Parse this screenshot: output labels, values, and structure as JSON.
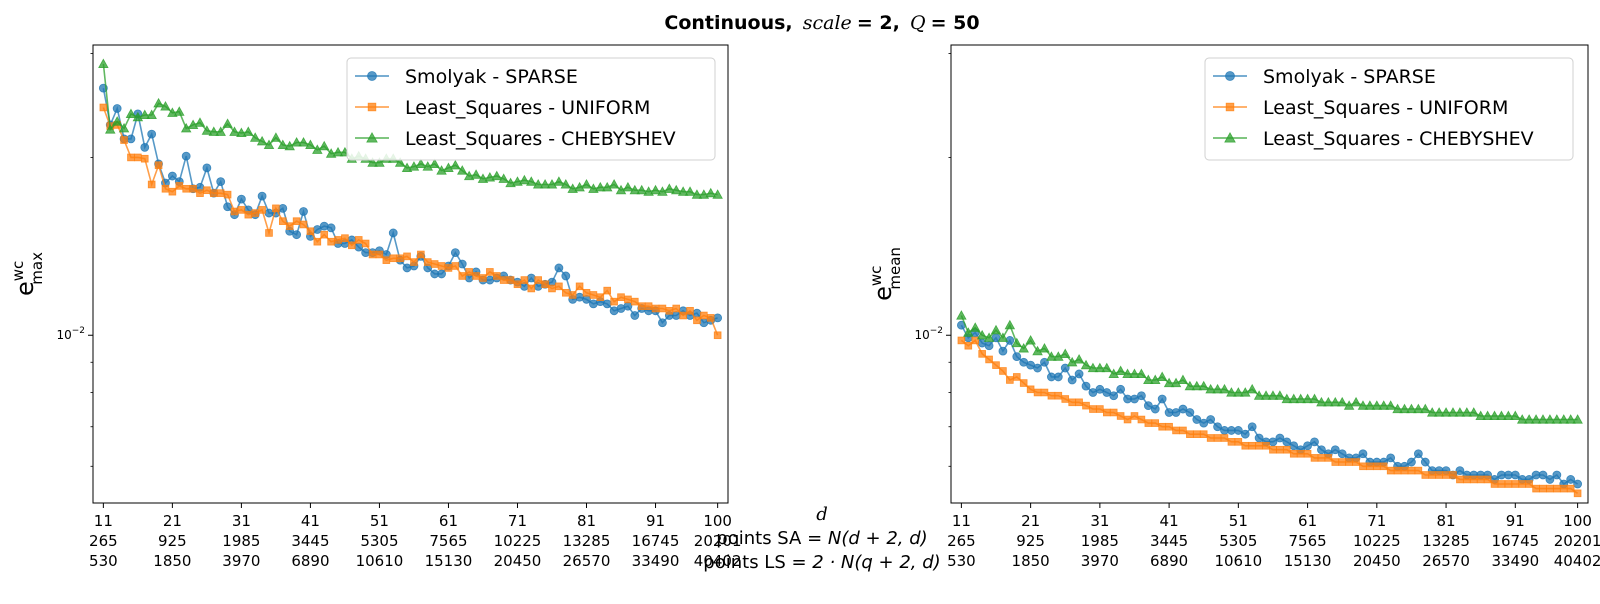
{
  "figure": {
    "title": {
      "prefix": "Continuous,",
      "scale_label": "scale",
      "scale_eq": " = 2,",
      "q_label": "Q",
      "q_eq": " = 50"
    },
    "xlabel": {
      "d": "d",
      "sa_prefix": "points SA",
      "sa_formula": " = N(d + 2, d)",
      "ls_prefix": "points LS",
      "ls_formula": " = 2 · N(q + 2, d)"
    }
  },
  "chart_data": [
    {
      "type": "line",
      "panel": "left",
      "ylabel": "e",
      "ylabel_sup": "wc",
      "ylabel_sub": "max",
      "yscale": "log",
      "ylim": [
        0.0052,
        0.031
      ],
      "xlim": [
        9.5,
        101.5
      ],
      "ytick": {
        "value": 0.01,
        "label": "10",
        "exp": "−2"
      },
      "xticks": [
        11,
        21,
        31,
        41,
        51,
        61,
        71,
        81,
        91,
        100
      ],
      "xtick_labels": [
        [
          "11",
          "265",
          "530"
        ],
        [
          "21",
          "925",
          "1850"
        ],
        [
          "31",
          "1985",
          "3970"
        ],
        [
          "41",
          "3445",
          "6890"
        ],
        [
          "51",
          "5305",
          "10610"
        ],
        [
          "61",
          "7565",
          "15130"
        ],
        [
          "71",
          "10225",
          "20450"
        ],
        [
          "81",
          "13285",
          "26570"
        ],
        [
          "91",
          "16745",
          "33490"
        ],
        [
          "100",
          "20201",
          "40402"
        ]
      ],
      "legend_position": "top-right",
      "x": [
        11,
        12,
        13,
        14,
        15,
        16,
        17,
        18,
        19,
        20,
        21,
        22,
        23,
        24,
        25,
        26,
        27,
        28,
        29,
        30,
        31,
        32,
        33,
        34,
        35,
        36,
        37,
        38,
        39,
        40,
        41,
        42,
        43,
        44,
        45,
        46,
        47,
        48,
        49,
        50,
        51,
        52,
        53,
        54,
        55,
        56,
        57,
        58,
        59,
        60,
        61,
        62,
        63,
        64,
        65,
        66,
        67,
        68,
        69,
        70,
        71,
        72,
        73,
        74,
        75,
        76,
        77,
        78,
        79,
        80,
        81,
        82,
        83,
        84,
        85,
        86,
        87,
        88,
        89,
        90,
        91,
        92,
        93,
        94,
        95,
        96,
        97,
        98,
        99,
        100
      ],
      "series": [
        {
          "name": "Smolyak - SPARSE",
          "color": "#1f77b4",
          "marker": "circle",
          "values": [
            0.0262,
            0.0227,
            0.0242,
            0.0215,
            0.0215,
            0.0237,
            0.0208,
            0.0219,
            0.0195,
            0.0181,
            0.0186,
            0.0182,
            0.0201,
            0.0177,
            0.0178,
            0.0192,
            0.0174,
            0.0182,
            0.0165,
            0.016,
            0.017,
            0.0163,
            0.016,
            0.0172,
            0.0161,
            0.0161,
            0.0164,
            0.015,
            0.0148,
            0.0162,
            0.0147,
            0.0151,
            0.0153,
            0.0152,
            0.0143,
            0.0143,
            0.0145,
            0.0141,
            0.0138,
            0.0138,
            0.0139,
            0.0137,
            0.0149,
            0.0134,
            0.013,
            0.0131,
            0.0136,
            0.013,
            0.0127,
            0.0127,
            0.0131,
            0.0138,
            0.0132,
            0.0125,
            0.0128,
            0.0124,
            0.0124,
            0.0125,
            0.0126,
            0.0124,
            0.0123,
            0.0121,
            0.0125,
            0.0121,
            0.0122,
            0.0123,
            0.013,
            0.0126,
            0.0115,
            0.0116,
            0.0115,
            0.0113,
            0.0114,
            0.0113,
            0.011,
            0.0111,
            0.0112,
            0.0108,
            0.0111,
            0.011,
            0.011,
            0.0105,
            0.0108,
            0.0108,
            0.011,
            0.0108,
            0.0109,
            0.0105,
            0.0106,
            0.0107
          ]
        },
        {
          "name": "Least_Squares - UNIFORM",
          "color": "#ff7f0e",
          "marker": "square",
          "values": [
            0.0243,
            0.0226,
            0.0227,
            0.0214,
            0.02,
            0.02,
            0.0199,
            0.018,
            0.0194,
            0.0177,
            0.0175,
            0.0179,
            0.0177,
            0.0177,
            0.0174,
            0.0176,
            0.0174,
            0.0174,
            0.0173,
            0.0162,
            0.0163,
            0.016,
            0.0161,
            0.0163,
            0.0149,
            0.0164,
            0.0156,
            0.0153,
            0.0156,
            0.0154,
            0.015,
            0.0144,
            0.0148,
            0.0144,
            0.0145,
            0.0146,
            0.0142,
            0.0145,
            0.0143,
            0.0137,
            0.0137,
            0.0134,
            0.0135,
            0.0135,
            0.0136,
            0.0133,
            0.0137,
            0.0133,
            0.0132,
            0.0131,
            0.013,
            0.0131,
            0.0126,
            0.0128,
            0.0126,
            0.0125,
            0.0128,
            0.0126,
            0.0124,
            0.0124,
            0.0122,
            0.0124,
            0.012,
            0.0124,
            0.0122,
            0.012,
            0.0121,
            0.0118,
            0.0117,
            0.0121,
            0.0118,
            0.0117,
            0.0116,
            0.0119,
            0.0114,
            0.0116,
            0.0115,
            0.0114,
            0.0112,
            0.0112,
            0.0111,
            0.0111,
            0.011,
            0.0111,
            0.0108,
            0.011,
            0.0106,
            0.0108,
            0.0107,
            0.01
          ]
        },
        {
          "name": "Least_Squares - CHEBYSHEV",
          "color": "#2ca02c",
          "marker": "triangle",
          "values": [
            0.0288,
            0.0223,
            0.023,
            0.0224,
            0.0237,
            0.0234,
            0.0236,
            0.0236,
            0.0247,
            0.0244,
            0.0238,
            0.0239,
            0.0224,
            0.0227,
            0.0229,
            0.0222,
            0.0221,
            0.0221,
            0.0228,
            0.0221,
            0.022,
            0.0221,
            0.0216,
            0.0213,
            0.021,
            0.0216,
            0.021,
            0.0209,
            0.0212,
            0.0212,
            0.021,
            0.0206,
            0.0209,
            0.0203,
            0.0204,
            0.0204,
            0.0199,
            0.0201,
            0.0199,
            0.0196,
            0.0196,
            0.0199,
            0.0199,
            0.0196,
            0.0192,
            0.0193,
            0.0195,
            0.0193,
            0.0195,
            0.019,
            0.0192,
            0.0194,
            0.019,
            0.0186,
            0.0187,
            0.0184,
            0.0185,
            0.0186,
            0.0184,
            0.0181,
            0.0182,
            0.0183,
            0.0182,
            0.018,
            0.018,
            0.018,
            0.0182,
            0.018,
            0.0177,
            0.0178,
            0.018,
            0.0177,
            0.0178,
            0.0178,
            0.018,
            0.0176,
            0.0178,
            0.0176,
            0.0176,
            0.0175,
            0.0176,
            0.0175,
            0.0177,
            0.0176,
            0.0175,
            0.0175,
            0.0173,
            0.0173,
            0.0174,
            0.0173
          ]
        }
      ]
    },
    {
      "type": "line",
      "panel": "right",
      "ylabel": "e",
      "ylabel_sup": "wc",
      "ylabel_sub": "mean",
      "yscale": "log",
      "ylim": [
        0.0052,
        0.031
      ],
      "xlim": [
        9.5,
        101.5
      ],
      "ytick": {
        "value": 0.01,
        "label": "10",
        "exp": "−2"
      },
      "xticks": [
        11,
        21,
        31,
        41,
        51,
        61,
        71,
        81,
        91,
        100
      ],
      "xtick_labels": [
        [
          "11",
          "265",
          "530"
        ],
        [
          "21",
          "925",
          "1850"
        ],
        [
          "31",
          "1985",
          "3970"
        ],
        [
          "41",
          "3445",
          "6890"
        ],
        [
          "51",
          "5305",
          "10610"
        ],
        [
          "61",
          "7565",
          "15130"
        ],
        [
          "71",
          "10225",
          "20450"
        ],
        [
          "81",
          "13285",
          "26570"
        ],
        [
          "91",
          "16745",
          "33490"
        ],
        [
          "100",
          "20201",
          "40402"
        ]
      ],
      "legend_position": "top-right",
      "x": [
        11,
        12,
        13,
        14,
        15,
        16,
        17,
        18,
        19,
        20,
        21,
        22,
        23,
        24,
        25,
        26,
        27,
        28,
        29,
        30,
        31,
        32,
        33,
        34,
        35,
        36,
        37,
        38,
        39,
        40,
        41,
        42,
        43,
        44,
        45,
        46,
        47,
        48,
        49,
        50,
        51,
        52,
        53,
        54,
        55,
        56,
        57,
        58,
        59,
        60,
        61,
        62,
        63,
        64,
        65,
        66,
        67,
        68,
        69,
        70,
        71,
        72,
        73,
        74,
        75,
        76,
        77,
        78,
        79,
        80,
        81,
        82,
        83,
        84,
        85,
        86,
        87,
        88,
        89,
        90,
        91,
        92,
        93,
        94,
        95,
        96,
        97,
        98,
        99,
        100
      ],
      "series": [
        {
          "name": "Smolyak - SPARSE",
          "color": "#1f77b4",
          "marker": "circle",
          "values": [
            0.0104,
            0.0099,
            0.0101,
            0.0097,
            0.0096,
            0.0099,
            0.0094,
            0.0098,
            0.0092,
            0.009,
            0.0089,
            0.0088,
            0.009,
            0.0085,
            0.0085,
            0.0088,
            0.0084,
            0.0086,
            0.0082,
            0.008,
            0.0081,
            0.008,
            0.0079,
            0.0081,
            0.0078,
            0.0078,
            0.0079,
            0.0076,
            0.0075,
            0.0078,
            0.0074,
            0.0074,
            0.0075,
            0.0074,
            0.0072,
            0.0071,
            0.0072,
            0.007,
            0.0069,
            0.0069,
            0.0069,
            0.0068,
            0.007,
            0.0067,
            0.0066,
            0.0066,
            0.0067,
            0.0066,
            0.0065,
            0.0064,
            0.0065,
            0.0066,
            0.0064,
            0.0063,
            0.0064,
            0.0063,
            0.0062,
            0.0062,
            0.0063,
            0.0061,
            0.0061,
            0.0061,
            0.0062,
            0.006,
            0.006,
            0.0061,
            0.0063,
            0.0061,
            0.0059,
            0.0059,
            0.0059,
            0.0058,
            0.0059,
            0.0058,
            0.0058,
            0.0058,
            0.0058,
            0.0057,
            0.0058,
            0.0058,
            0.0058,
            0.0057,
            0.0057,
            0.0058,
            0.0058,
            0.0057,
            0.0058,
            0.0056,
            0.0057,
            0.0056
          ]
        },
        {
          "name": "Least_Squares - UNIFORM",
          "color": "#ff7f0e",
          "marker": "square",
          "values": [
            0.0098,
            0.0096,
            0.0098,
            0.0093,
            0.0091,
            0.0089,
            0.0087,
            0.0084,
            0.0085,
            0.0083,
            0.0081,
            0.008,
            0.008,
            0.0079,
            0.0079,
            0.0078,
            0.0077,
            0.0077,
            0.0076,
            0.0075,
            0.0075,
            0.0074,
            0.0074,
            0.0073,
            0.0072,
            0.0073,
            0.0072,
            0.0071,
            0.0071,
            0.007,
            0.007,
            0.0069,
            0.0069,
            0.0068,
            0.0068,
            0.0068,
            0.0067,
            0.0067,
            0.0067,
            0.0066,
            0.0066,
            0.0065,
            0.0065,
            0.0065,
            0.0065,
            0.0064,
            0.0064,
            0.0064,
            0.0063,
            0.0063,
            0.0063,
            0.0062,
            0.0062,
            0.0062,
            0.0061,
            0.0061,
            0.0061,
            0.0061,
            0.006,
            0.006,
            0.006,
            0.006,
            0.0059,
            0.0059,
            0.0059,
            0.0059,
            0.0059,
            0.0058,
            0.0058,
            0.0058,
            0.0058,
            0.0058,
            0.0057,
            0.0057,
            0.0057,
            0.0057,
            0.0057,
            0.0056,
            0.0056,
            0.0056,
            0.0056,
            0.0056,
            0.0056,
            0.0055,
            0.0055,
            0.0055,
            0.0055,
            0.0055,
            0.0055,
            0.0054
          ]
        },
        {
          "name": "Least_Squares - CHEBYSHEV",
          "color": "#2ca02c",
          "marker": "triangle",
          "values": [
            0.0108,
            0.0101,
            0.0103,
            0.01,
            0.0099,
            0.0102,
            0.0099,
            0.0104,
            0.0097,
            0.0095,
            0.0098,
            0.0094,
            0.0095,
            0.0092,
            0.0092,
            0.0093,
            0.009,
            0.0091,
            0.0089,
            0.0088,
            0.0088,
            0.0088,
            0.0086,
            0.0087,
            0.0086,
            0.0086,
            0.0086,
            0.0084,
            0.0084,
            0.0085,
            0.0083,
            0.0083,
            0.0084,
            0.0082,
            0.0082,
            0.0082,
            0.0081,
            0.0081,
            0.0081,
            0.008,
            0.008,
            0.008,
            0.0081,
            0.0079,
            0.0079,
            0.0079,
            0.0079,
            0.0078,
            0.0078,
            0.0078,
            0.0078,
            0.0078,
            0.0077,
            0.0077,
            0.0077,
            0.0077,
            0.0076,
            0.0077,
            0.0076,
            0.0076,
            0.0076,
            0.0076,
            0.0076,
            0.0075,
            0.0075,
            0.0075,
            0.0075,
            0.0075,
            0.0074,
            0.0074,
            0.0074,
            0.0074,
            0.0074,
            0.0074,
            0.0074,
            0.0073,
            0.0073,
            0.0073,
            0.0073,
            0.0073,
            0.0073,
            0.0072,
            0.0072,
            0.0072,
            0.0072,
            0.0072,
            0.0072,
            0.0072,
            0.0072,
            0.0072
          ]
        }
      ]
    }
  ]
}
